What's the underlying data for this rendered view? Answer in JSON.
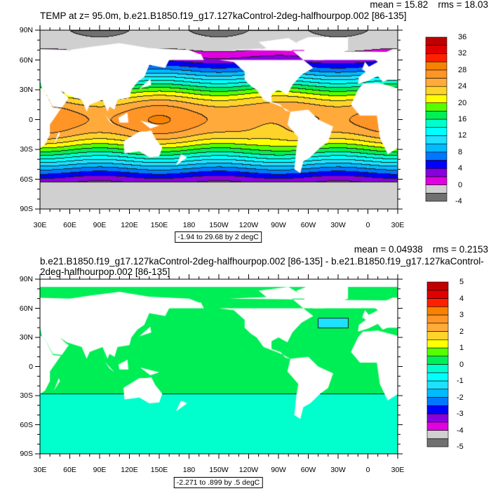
{
  "panels": [
    {
      "title": "TEMP at z=  95.0m, b.e21.B1850.f19_g17.127kaControl-2deg-halfhourpop.002 [86-135]",
      "mean_label": "mean = 15.82",
      "rms_label": "rms = 18.03",
      "contour_info": "-1.94 to 29.68 by 2 degC",
      "colorbar_labels": [
        "36",
        "32",
        "28",
        "24",
        "20",
        "16",
        "12",
        "8",
        "4",
        "0",
        "-4"
      ],
      "colorbar_range": [
        -4,
        36
      ],
      "colorbar_step": 2
    },
    {
      "title": "b.e21.B1850.f19_g17.127kaControl-2deg-halfhourpop.002 [86-135] - b.e21.B1850.f19_g17.127kaControl-2deg-halfhourpop.002 [86-135]",
      "mean_label": "mean = 0.04938",
      "rms_label": "rms = 0.2153",
      "contour_info": "-2.271 to .899 by .5 degC",
      "colorbar_labels": [
        "5",
        "4",
        "3",
        "2",
        "1",
        "0",
        "-1",
        "-2",
        "-3",
        "-4",
        "-5"
      ],
      "colorbar_range": [
        -5,
        5
      ],
      "colorbar_step": 0.5
    }
  ],
  "lat_labels": [
    "90N",
    "60N",
    "30N",
    "0",
    "30S",
    "60S",
    "90S"
  ],
  "lon_labels": [
    "30E",
    "60E",
    "90E",
    "120E",
    "150E",
    "180",
    "150W",
    "120W",
    "90W",
    "60W",
    "30W",
    "0",
    "30E"
  ],
  "colormap": [
    "#707070",
    "#d0d0d0",
    "#e000e0",
    "#8800dd",
    "#0000ff",
    "#0077ff",
    "#00bbff",
    "#1ee0ff",
    "#00ffff",
    "#00ffcc",
    "#00ee55",
    "#55ff00",
    "#ffff00",
    "#ffd42a",
    "#ffaa3a",
    "#ff9526",
    "#f58200",
    "#ff2000",
    "#e00000",
    "#c00000"
  ],
  "contour_labels_top": [
    "20",
    "16",
    "24",
    "24",
    "24",
    "20",
    "16",
    "12",
    "8",
    "12",
    "8",
    "4",
    "4",
    "0",
    "0"
  ]
}
